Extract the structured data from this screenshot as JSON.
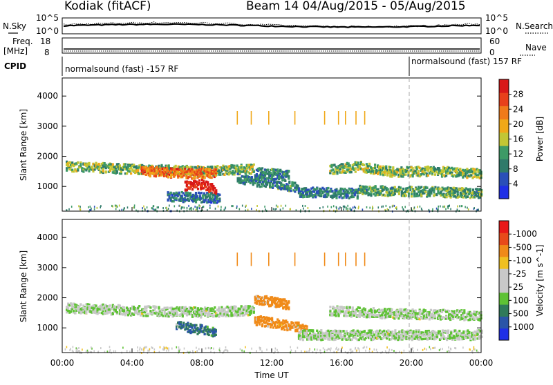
{
  "header": {
    "station": "Kodiak (fitACF)",
    "beam_label": "Beam 14 04/Aug/2015 - 05/Aug/2015"
  },
  "strip_labels": {
    "nsky": "N.Sky",
    "nsky_top": "10^5",
    "nsky_bot": "10^0",
    "nsearch": "N.Search",
    "nsearch_top": "10^5",
    "nsearch_bot": "10^0",
    "freq": "Freq.",
    "freq_unit": "[MHz]",
    "freq_top": "18",
    "freq_bot": "8",
    "nave": "Nave",
    "nave_top": "60",
    "nave_bot": "0",
    "cpid": "CPID",
    "cpid_a": "normalsound (fast) -157 RF",
    "cpid_b": "normalsound (fast) 157 RF"
  },
  "colors": {
    "power": [
      "#1f2fe6",
      "#2a4fb8",
      "#2f7a6a",
      "#3d9a66",
      "#c2c634",
      "#f0a818",
      "#f07a1a",
      "#e8401a",
      "#d81818"
    ],
    "velocity": [
      "#1f2fe6",
      "#2a55a8",
      "#2f7a5a",
      "#5ec234",
      "#c8c8c8",
      "#c8c8c8",
      "#f0c020",
      "#f08a18",
      "#e84a1a",
      "#e81818"
    ],
    "frame": "#000000"
  },
  "chart_data": [
    {
      "type": "heatmap",
      "title": "",
      "ylabel": "Slant Range [km]",
      "xlabel": "",
      "ylim": [
        180,
        4600
      ],
      "yticks": [
        1000,
        2000,
        3000,
        4000
      ],
      "colorbar_label": "Power [dB]",
      "colorbar_ticks": [
        "4",
        "8",
        "12",
        "16",
        "20",
        "24",
        "28"
      ],
      "colorbar_range": [
        0,
        32
      ],
      "bands": [
        {
          "t": [
            0.2,
            4.5,
            8.0,
            11.0
          ],
          "r": [
            1700,
            1600,
            1550,
            1620
          ],
          "level": 14
        },
        {
          "t": [
            4.5,
            6.0,
            7.5,
            8.8
          ],
          "r": [
            1550,
            1500,
            1450,
            1500
          ],
          "level": 24
        },
        {
          "t": [
            11.0,
            13.0
          ],
          "r": [
            1500,
            1400
          ],
          "level": 10
        },
        {
          "t": [
            15.3,
            17.0,
            19.0,
            21.0,
            24.0
          ],
          "r": [
            1600,
            1700,
            1500,
            1550,
            1450
          ],
          "level": 14
        },
        {
          "t": [
            7.0,
            8.0,
            8.8
          ],
          "r": [
            1050,
            1100,
            900
          ],
          "level": 30
        },
        {
          "t": [
            6.0,
            9.0
          ],
          "r": [
            700,
            650
          ],
          "level": 8
        },
        {
          "t": [
            10.0,
            13.5
          ],
          "r": [
            1300,
            1000
          ],
          "level": 10
        },
        {
          "t": [
            13.5,
            17.0
          ],
          "r": [
            850,
            800
          ],
          "level": 9
        },
        {
          "t": [
            17.0,
            21.5,
            24.0
          ],
          "r": [
            900,
            850,
            800
          ],
          "level": 12
        }
      ]
    },
    {
      "type": "heatmap",
      "title": "",
      "ylabel": "Slant Range [km]",
      "xlabel": "Time UT",
      "ylim": [
        180,
        4600
      ],
      "yticks": [
        1000,
        2000,
        3000,
        4000
      ],
      "xticks": [
        "00:00",
        "04:00",
        "08:00",
        "12:00",
        "16:00",
        "20:00",
        "00:00"
      ],
      "xlim": [
        0,
        24
      ],
      "colorbar_label": "Velocity [m s^-1]",
      "colorbar_ticks": [
        "1000",
        "500",
        "100",
        "25",
        "-25",
        "-100",
        "-500",
        "-1000"
      ],
      "bands": [
        {
          "t": [
            0.2,
            4.5,
            8.0,
            11.0
          ],
          "r": [
            1700,
            1600,
            1550,
            1620
          ],
          "level": 25
        },
        {
          "t": [
            11.0,
            13.0
          ],
          "r": [
            2000,
            1800
          ],
          "level": -200
        },
        {
          "t": [
            15.3,
            19.0,
            24.0
          ],
          "r": [
            1600,
            1500,
            1450
          ],
          "level": 25
        },
        {
          "t": [
            6.5,
            8.8
          ],
          "r": [
            1100,
            900
          ],
          "level": 500
        },
        {
          "t": [
            11.0,
            14.0
          ],
          "r": [
            1300,
            1000
          ],
          "level": -300
        },
        {
          "t": [
            13.5,
            24.0
          ],
          "r": [
            800,
            800
          ],
          "level": 25
        }
      ]
    }
  ]
}
